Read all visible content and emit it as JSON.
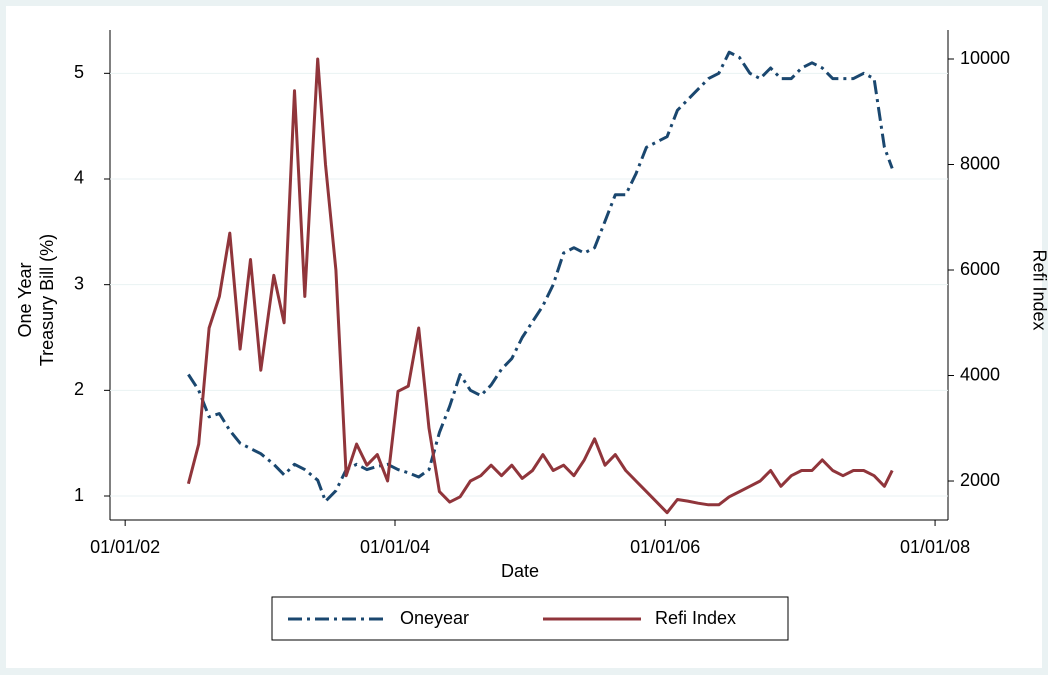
{
  "chart_data": {
    "type": "line",
    "xlabel": "Date",
    "ylabel": [
      "One Year",
      "Treasury Bill (%)"
    ],
    "y2label": "Refi Index",
    "x": [
      "2002-06-21",
      "2002-07-19",
      "2002-08-16",
      "2002-09-13",
      "2002-10-11",
      "2002-11-08",
      "2002-12-06",
      "2003-01-03",
      "2003-02-07",
      "2003-03-07",
      "2003-04-04",
      "2003-05-02",
      "2003-06-06",
      "2003-06-27",
      "2003-07-25",
      "2003-08-22",
      "2003-09-19",
      "2003-10-17",
      "2003-11-14",
      "2003-12-12",
      "2004-01-09",
      "2004-02-06",
      "2004-03-05",
      "2004-04-02",
      "2004-04-30",
      "2004-05-28",
      "2004-06-25",
      "2004-07-23",
      "2004-08-20",
      "2004-09-17",
      "2004-10-15",
      "2004-11-12",
      "2004-12-10",
      "2005-01-07",
      "2005-02-04",
      "2005-03-04",
      "2005-04-01",
      "2005-04-29",
      "2005-05-27",
      "2005-06-24",
      "2005-07-22",
      "2005-08-19",
      "2005-09-16",
      "2005-10-14",
      "2005-11-11",
      "2005-12-09",
      "2006-01-06",
      "2006-02-03",
      "2006-03-03",
      "2006-03-31",
      "2006-04-28",
      "2006-05-26",
      "2006-06-23",
      "2006-07-21",
      "2006-08-18",
      "2006-09-15",
      "2006-10-13",
      "2006-11-10",
      "2006-12-08",
      "2007-01-05",
      "2007-02-02",
      "2007-03-02",
      "2007-03-30",
      "2007-04-27",
      "2007-05-25",
      "2007-06-22",
      "2007-07-20",
      "2007-08-17",
      "2007-09-07"
    ],
    "series": [
      {
        "name": "Oneyear",
        "color": "#1a476f",
        "style": "dash-dot",
        "axis": "y",
        "values": [
          2.15,
          2.0,
          1.75,
          1.78,
          1.62,
          1.5,
          1.45,
          1.4,
          1.3,
          1.2,
          1.3,
          1.25,
          1.15,
          0.95,
          1.05,
          1.25,
          1.3,
          1.25,
          1.28,
          1.3,
          1.25,
          1.22,
          1.18,
          1.25,
          1.6,
          1.85,
          2.15,
          2.0,
          1.95,
          2.05,
          2.2,
          2.3,
          2.5,
          2.65,
          2.8,
          3.0,
          3.3,
          3.35,
          3.3,
          3.35,
          3.6,
          3.85,
          3.85,
          4.05,
          4.3,
          4.35,
          4.4,
          4.65,
          4.75,
          4.85,
          4.95,
          5.0,
          5.2,
          5.15,
          5.0,
          4.95,
          5.05,
          4.95,
          4.95,
          5.05,
          5.1,
          5.05,
          4.95,
          4.95,
          4.95,
          5.0,
          4.95,
          4.3,
          4.1
        ]
      },
      {
        "name": "Refi Index",
        "color": "#90353b",
        "style": "solid",
        "axis": "y2",
        "values": [
          1950,
          2700,
          4900,
          5500,
          6700,
          4500,
          6200,
          4100,
          5900,
          5000,
          9400,
          5500,
          10000,
          8000,
          6000,
          2100,
          2700,
          2300,
          2500,
          2000,
          3700,
          3800,
          4900,
          3000,
          1800,
          1600,
          1700,
          2000,
          2100,
          2300,
          2100,
          2300,
          2050,
          2200,
          2500,
          2200,
          2300,
          2100,
          2400,
          2800,
          2300,
          2500,
          2200,
          2000,
          1800,
          1600,
          1400,
          1650,
          1620,
          1580,
          1550,
          1550,
          1700,
          1800,
          1900,
          2000,
          2200,
          1900,
          2100,
          2200,
          2200,
          2400,
          2200,
          2100,
          2200,
          2200,
          2100,
          1900,
          2200
        ]
      }
    ],
    "xlim": [
      "2001-11-21",
      "2008-02-05"
    ],
    "xticks": [
      {
        "value": "2002-01-01",
        "label": "01/01/02"
      },
      {
        "value": "2004-01-01",
        "label": "01/01/04"
      },
      {
        "value": "2006-01-01",
        "label": "01/01/06"
      },
      {
        "value": "2008-01-01",
        "label": "01/01/08"
      }
    ],
    "ylim": [
      0.773,
      5.41
    ],
    "yticks": [
      1,
      2,
      3,
      4,
      5
    ],
    "y2lim": [
      1261,
      10550
    ],
    "y2ticks": [
      2000,
      4000,
      6000,
      8000,
      10000
    ],
    "grid": true,
    "legend": "bottom"
  }
}
